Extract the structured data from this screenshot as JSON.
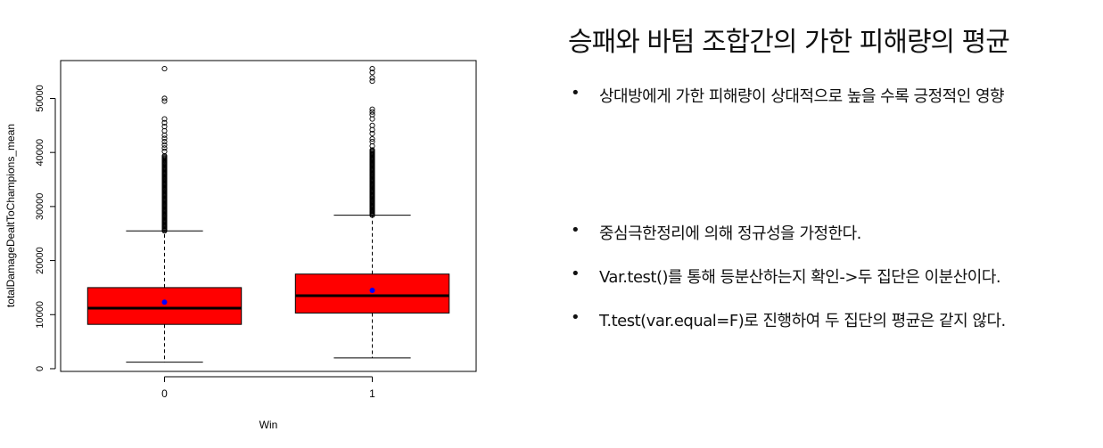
{
  "slide": {
    "title": "승패와 바텀 조합간의 가한 피해량의 평균",
    "bullets": [
      "상대방에게 가한 피해량이 상대적으로 높을 수록 긍정적인 영향",
      "중심극한정리에 의해 정규성을 가정한다.",
      "Var.test()를 통해 등분산하는지 확인->두 집단은 이분산이다.",
      "T.test(var.equal=F)로 진행하여 두 집단의 평균은 같지 않다."
    ],
    "bullet_symbol": "•"
  },
  "chart_data": {
    "type": "boxplot",
    "xlabel": "Win",
    "ylabel": "totalDamageDealtToChampions_mean",
    "ylim": [
      -500,
      57000
    ],
    "yticks": [
      0,
      10000,
      20000,
      30000,
      40000,
      50000
    ],
    "box_fill": "#ff0000",
    "mean_color": "#0000ff",
    "groups": [
      {
        "category": "0",
        "whisker_low": 1200,
        "q1": 8200,
        "median": 11200,
        "q3": 15000,
        "whisker_high": 25500,
        "mean": 12300,
        "outlier_max": 55500,
        "outliers_sparse": [
          55500,
          50000,
          49500,
          46200,
          45500,
          44800,
          44000,
          43200,
          42600,
          42000,
          41400,
          40800,
          40200
        ],
        "outliers_dense_range": [
          25500,
          39500
        ]
      },
      {
        "category": "1",
        "whisker_low": 2000,
        "q1": 10300,
        "median": 13500,
        "q3": 17500,
        "whisker_high": 28400,
        "mean": 14500,
        "outlier_max": 55500,
        "outliers_sparse": [
          55500,
          54800,
          53800,
          53200,
          48000,
          47500,
          47000,
          46200,
          45000,
          44200,
          43500,
          42500,
          42000,
          41200
        ],
        "outliers_dense_range": [
          28400,
          40500
        ]
      }
    ]
  }
}
